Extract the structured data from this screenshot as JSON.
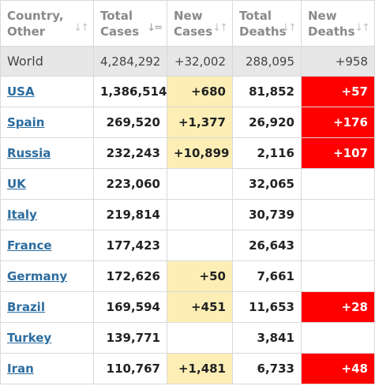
{
  "colors": {
    "header_text": "#8a8a8a",
    "link": "#2b6c9f",
    "world_row_bg": "#e7e7e7",
    "new_cases_highlight": "#fdeeb5",
    "new_deaths_highlight": "#ff0000"
  },
  "table": {
    "headers": [
      {
        "label": "Country,\nOther",
        "sort_icon": "sort-icon"
      },
      {
        "label": "Total\nCases",
        "sort_icon": "sort-desc-icon"
      },
      {
        "label": "New\nCases",
        "sort_icon": "sort-icon"
      },
      {
        "label": "Total\nDeaths",
        "sort_icon": "sort-icon"
      },
      {
        "label": "New\nDeaths",
        "sort_icon": "sort-icon"
      }
    ],
    "world": {
      "country": "World",
      "total_cases": "4,284,292",
      "new_cases": "+32,002",
      "total_deaths": "288,095",
      "new_deaths": "+958"
    },
    "rows": [
      {
        "country": "USA",
        "total_cases": "1,386,514",
        "new_cases": "+680",
        "total_deaths": "81,852",
        "new_deaths": "+57"
      },
      {
        "country": "Spain",
        "total_cases": "269,520",
        "new_cases": "+1,377",
        "total_deaths": "26,920",
        "new_deaths": "+176"
      },
      {
        "country": "Russia",
        "total_cases": "232,243",
        "new_cases": "+10,899",
        "total_deaths": "2,116",
        "new_deaths": "+107"
      },
      {
        "country": "UK",
        "total_cases": "223,060",
        "new_cases": "",
        "total_deaths": "32,065",
        "new_deaths": ""
      },
      {
        "country": "Italy",
        "total_cases": "219,814",
        "new_cases": "",
        "total_deaths": "30,739",
        "new_deaths": ""
      },
      {
        "country": "France",
        "total_cases": "177,423",
        "new_cases": "",
        "total_deaths": "26,643",
        "new_deaths": ""
      },
      {
        "country": "Germany",
        "total_cases": "172,626",
        "new_cases": "+50",
        "total_deaths": "7,661",
        "new_deaths": ""
      },
      {
        "country": "Brazil",
        "total_cases": "169,594",
        "new_cases": "+451",
        "total_deaths": "11,653",
        "new_deaths": "+28"
      },
      {
        "country": "Turkey",
        "total_cases": "139,771",
        "new_cases": "",
        "total_deaths": "3,841",
        "new_deaths": ""
      },
      {
        "country": "Iran",
        "total_cases": "110,767",
        "new_cases": "+1,481",
        "total_deaths": "6,733",
        "new_deaths": "+48"
      }
    ]
  }
}
